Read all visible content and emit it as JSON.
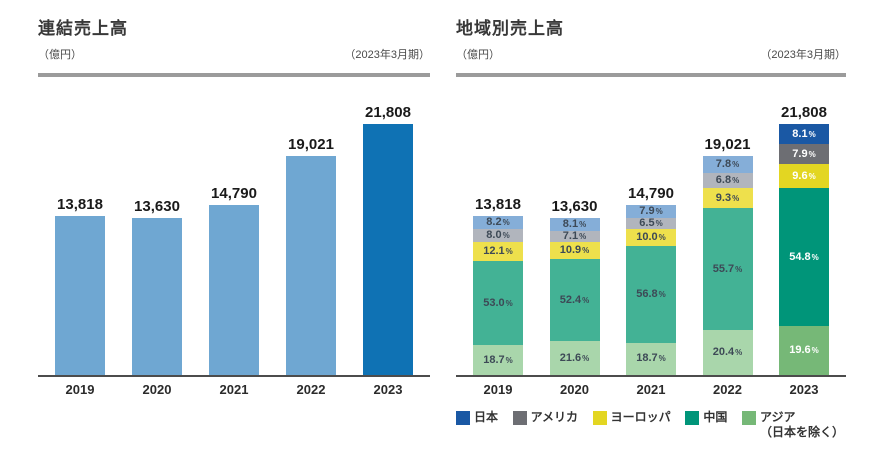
{
  "chart_data": [
    {
      "type": "bar",
      "title": "連結売上高",
      "unit_label": "（億円）",
      "period_label": "（2023年3月期）",
      "categories": [
        "2019",
        "2020",
        "2021",
        "2022",
        "2023"
      ],
      "values": [
        13818,
        13630,
        14790,
        19021,
        21808
      ],
      "value_labels": [
        "13,818",
        "13,630",
        "14,790",
        "19,021",
        "21,808"
      ],
      "ylim": [
        0,
        21808
      ],
      "bar_color": "#6fa7d2",
      "highlight_color": "#0f72b4",
      "highlight_index": 4,
      "grid": "off",
      "legend_position": "none"
    },
    {
      "type": "stacked-bar",
      "title": "地域別売上高",
      "unit_label": "（億円）",
      "period_label": "（2023年3月期）",
      "categories": [
        "2019",
        "2020",
        "2021",
        "2022",
        "2023"
      ],
      "totals": [
        13818,
        13630,
        14790,
        19021,
        21808
      ],
      "total_labels": [
        "13,818",
        "13,630",
        "14,790",
        "19,021",
        "21,808"
      ],
      "stack_order": "top-to-bottom",
      "unit": "percent",
      "series": [
        {
          "name": "日本",
          "color": "#1a58a4",
          "muted_color": "#85aed8",
          "values": [
            8.2,
            8.1,
            7.9,
            7.8,
            8.1
          ]
        },
        {
          "name": "アメリカ",
          "color": "#6d6e73",
          "muted_color": "#b1b5bd",
          "values": [
            8.0,
            7.1,
            6.5,
            6.8,
            7.9
          ]
        },
        {
          "name": "ヨーロッパ",
          "color": "#e3d622",
          "muted_color": "#eee04c",
          "values": [
            12.1,
            10.9,
            10.0,
            9.3,
            9.6
          ]
        },
        {
          "name": "中国",
          "color": "#009579",
          "muted_color": "#43b295",
          "values": [
            53.0,
            52.4,
            56.8,
            55.7,
            54.8
          ]
        },
        {
          "name": "アジア（日本を除く）",
          "color": "#76b877",
          "muted_color": "#a9d6ab",
          "values": [
            18.7,
            21.6,
            18.7,
            20.4,
            19.6
          ]
        }
      ],
      "highlight_index": 4,
      "label_color_muted": "#3d4956",
      "label_color_highlight": "#ffffff",
      "grid": "off",
      "legend_position": "bottom",
      "legend": [
        {
          "label": "日本",
          "color": "#1a58a4"
        },
        {
          "label": "アメリカ",
          "color": "#6d6e73"
        },
        {
          "label": "ヨーロッパ",
          "color": "#e3d622"
        },
        {
          "label": "中国",
          "color": "#009579"
        },
        {
          "label": "アジア",
          "sub_label": "（日本を除く）",
          "color": "#76b877"
        }
      ]
    }
  ]
}
